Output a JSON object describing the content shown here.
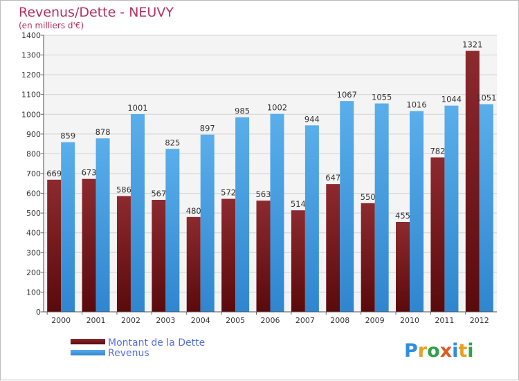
{
  "chart_data": {
    "type": "bar",
    "title": "Revenus/Dette - NEUVY",
    "subtitle": "(en milliers d'€)",
    "categories": [
      "2000",
      "2001",
      "2002",
      "2003",
      "2004",
      "2005",
      "2006",
      "2007",
      "2008",
      "2009",
      "2010",
      "2011",
      "2012"
    ],
    "series": [
      {
        "name": "Montant de la Dette",
        "color": "#7a1518",
        "values": [
          669,
          673,
          586,
          567,
          480,
          572,
          563,
          514,
          647,
          550,
          455,
          782,
          1321
        ]
      },
      {
        "name": "Revenus",
        "color": "#4fa3e6",
        "values": [
          859,
          878,
          1001,
          825,
          897,
          985,
          1002,
          944,
          1067,
          1055,
          1016,
          1044,
          1051
        ]
      }
    ],
    "ylim": [
      0,
      1400
    ],
    "ytick_step": 100,
    "grid": true,
    "legend_position": "bottom-left"
  },
  "brand": {
    "letters": [
      "P",
      "r",
      "o",
      "x",
      "i",
      "t",
      "i"
    ],
    "colors": [
      "#2d8fe0",
      "#e8a020",
      "#33a04a",
      "#e05a20",
      "#2d8fe0",
      "#e8a020",
      "#33a04a"
    ]
  }
}
